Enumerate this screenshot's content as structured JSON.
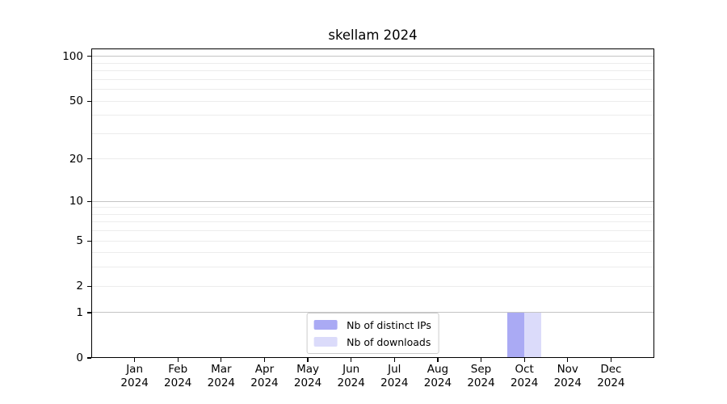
{
  "title": "skellam 2024",
  "colors": {
    "bar_distinct_ips": "#aaaaf4",
    "bar_downloads": "#dbdbfa",
    "grid_major": "#c4c4c4",
    "grid_minor": "#ececec",
    "axis": "#000000",
    "legend_border": "#cccccc",
    "background": "#ffffff"
  },
  "legend": {
    "position": "lower center",
    "items": [
      {
        "label": "Nb of distinct IPs",
        "color": "#aaaaf4"
      },
      {
        "label": "Nb of downloads",
        "color": "#dbdbfa"
      }
    ]
  },
  "axes": {
    "y_tick_labels": [
      "0",
      "1",
      "2",
      "5",
      "10",
      "20",
      "50",
      "100"
    ],
    "x_tick_months": [
      "Jan",
      "Feb",
      "Mar",
      "Apr",
      "May",
      "Jun",
      "Jul",
      "Aug",
      "Sep",
      "Oct",
      "Nov",
      "Dec"
    ],
    "x_tick_year": "2024"
  },
  "chart_data": {
    "type": "bar",
    "title": "skellam 2024",
    "xlabel": "",
    "ylabel": "",
    "yscale": "log1p",
    "ylim": [
      0,
      100
    ],
    "grid": true,
    "legend_position": "lower center",
    "categories": [
      "Jan 2024",
      "Feb 2024",
      "Mar 2024",
      "Apr 2024",
      "May 2024",
      "Jun 2024",
      "Jul 2024",
      "Aug 2024",
      "Sep 2024",
      "Oct 2024",
      "Nov 2024",
      "Dec 2024"
    ],
    "series": [
      {
        "name": "Nb of distinct IPs",
        "color": "#aaaaf4",
        "values": [
          0,
          0,
          0,
          0,
          0,
          0,
          0,
          0,
          0,
          1,
          0,
          0
        ]
      },
      {
        "name": "Nb of downloads",
        "color": "#dbdbfa",
        "values": [
          0,
          0,
          0,
          0,
          0,
          0,
          0,
          0,
          0,
          1,
          0,
          0
        ]
      }
    ],
    "y_ticks": [
      0,
      1,
      2,
      5,
      10,
      20,
      50,
      100
    ],
    "y_major_gridlines": [
      1,
      10,
      100
    ],
    "y_minor_gridlines": [
      2,
      3,
      4,
      5,
      6,
      7,
      8,
      9,
      20,
      30,
      40,
      50,
      60,
      70,
      80,
      90
    ]
  }
}
